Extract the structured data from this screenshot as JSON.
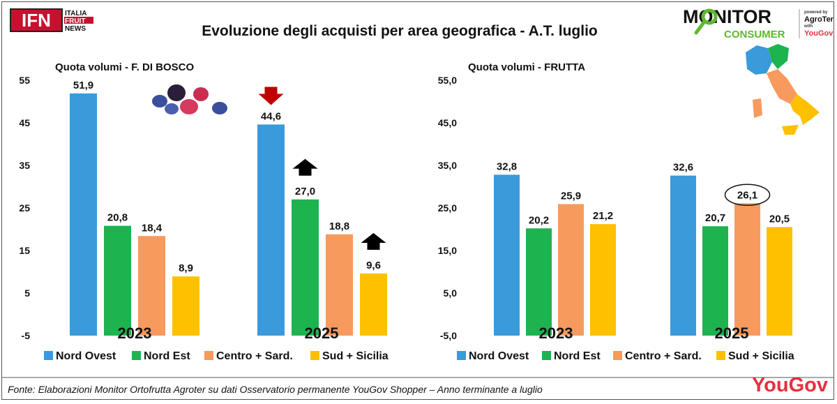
{
  "header": {
    "title": "Evoluzione degli acquisti per area geografica - A.T. luglio",
    "ifn_logo": {
      "mark": "IFN",
      "line1": "ITALIA",
      "line2": "FRUIT",
      "line3": "NEWS"
    },
    "monitor_logo": {
      "line1": "MONITOR",
      "line2": "CONSUMER",
      "powered": "powered by",
      "brand": "AgroTer",
      "with": "with",
      "partner": "YouGov"
    }
  },
  "colors": {
    "nord_ovest": "#3B9AD9",
    "nord_est": "#1DB34F",
    "centro": "#F79A5E",
    "sud": "#FFC000",
    "arrow_down": "#C00000",
    "arrow_up": "#000000",
    "yougov": "#E5303E"
  },
  "chart_data": [
    {
      "type": "bar",
      "title": "Quota volumi  - F. DI BOSCO",
      "ylim": [
        -5,
        55
      ],
      "yticks": [
        "55",
        "45",
        "35",
        "25",
        "15",
        "5",
        "-5"
      ],
      "categories": [
        "2023",
        "2025"
      ],
      "series": [
        {
          "name": "Nord Ovest",
          "values": [
            51.9,
            44.6
          ],
          "labels": [
            "51,9",
            "44,6"
          ]
        },
        {
          "name": "Nord Est",
          "values": [
            20.8,
            27.0
          ],
          "labels": [
            "20,8",
            "27,0"
          ]
        },
        {
          "name": "Centro + Sard.",
          "values": [
            18.4,
            18.8
          ],
          "labels": [
            "18,4",
            "18,8"
          ]
        },
        {
          "name": "Sud + Sicilia",
          "values": [
            8.9,
            9.6
          ],
          "labels": [
            "8,9",
            "9,6"
          ]
        }
      ],
      "annotations": [
        {
          "type": "arrow-down",
          "series": "Nord Ovest",
          "category": "2025"
        },
        {
          "type": "arrow-up",
          "series": "Nord Est",
          "category": "2025"
        },
        {
          "type": "arrow-up",
          "series": "Sud + Sicilia",
          "category": "2025"
        }
      ],
      "grid": false,
      "legend": "bottom"
    },
    {
      "type": "bar",
      "title": "Quota volumi  - FRUTTA",
      "ylim": [
        -5,
        55
      ],
      "yticks": [
        "55,0",
        "45,0",
        "35,0",
        "25,0",
        "15,0",
        "5,0",
        "-5,0"
      ],
      "categories": [
        "2023",
        "2025"
      ],
      "series": [
        {
          "name": "Nord Ovest",
          "values": [
            32.8,
            32.6
          ],
          "labels": [
            "32,8",
            "32,6"
          ]
        },
        {
          "name": "Nord Est",
          "values": [
            20.2,
            20.7
          ],
          "labels": [
            "20,2",
            "20,7"
          ]
        },
        {
          "name": "Centro + Sard.",
          "values": [
            25.9,
            26.1
          ],
          "labels": [
            "25,9",
            "26,1"
          ]
        },
        {
          "name": "Sud + Sicilia",
          "values": [
            21.2,
            20.5
          ],
          "labels": [
            "21,2",
            "20,5"
          ]
        }
      ],
      "annotations": [
        {
          "type": "circle",
          "series": "Centro + Sard.",
          "category": "2025"
        }
      ],
      "grid": false,
      "legend": "bottom"
    }
  ],
  "legend": [
    "Nord Ovest",
    "Nord Est",
    "Centro + Sard.",
    "Sud + Sicilia"
  ],
  "footer": {
    "source": "Fonte: Elaborazioni Monitor Ortofrutta Agroter su dati Osservatorio permanente YouGov Shopper – Anno terminante a luglio",
    "yougov": "YouGov"
  }
}
